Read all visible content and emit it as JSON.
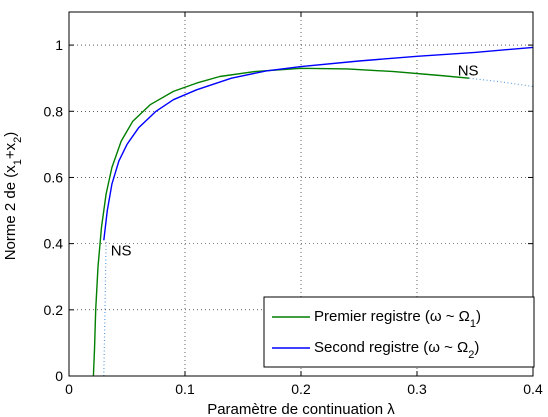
{
  "chart_data": {
    "type": "line",
    "xlabel": "Paramètre de continuation λ",
    "ylabel": "Norme 2 de (x",
    "ylabel_sub1": "1",
    "ylabel_plus": "+x",
    "ylabel_sub2": "2",
    "ylabel_close": ")",
    "xlim": [
      0,
      0.4
    ],
    "ylim": [
      0,
      1.1
    ],
    "xticks": [
      0,
      0.1,
      0.2,
      0.3,
      0.4
    ],
    "yticks": [
      0,
      0.2,
      0.4,
      0.6,
      0.8,
      1
    ],
    "xtick_labels": [
      "0",
      "0.1",
      "0.2",
      "0.3",
      "0.4"
    ],
    "ytick_labels": [
      "0",
      "0.2",
      "0.4",
      "0.6",
      "0.8",
      "1"
    ],
    "grid": true,
    "legend_position": "bottom-right",
    "series": [
      {
        "name": "Premier registre (ω ~ Ω",
        "name_sub": "1",
        "name_close": ")",
        "color": "#007f00",
        "dash": false,
        "points": [
          [
            0.021,
            0.0
          ],
          [
            0.022,
            0.08
          ],
          [
            0.023,
            0.2
          ],
          [
            0.025,
            0.33
          ],
          [
            0.028,
            0.45
          ],
          [
            0.032,
            0.55
          ],
          [
            0.037,
            0.63
          ],
          [
            0.045,
            0.71
          ],
          [
            0.055,
            0.77
          ],
          [
            0.07,
            0.82
          ],
          [
            0.09,
            0.86
          ],
          [
            0.11,
            0.885
          ],
          [
            0.13,
            0.905
          ],
          [
            0.16,
            0.92
          ],
          [
            0.2,
            0.93
          ],
          [
            0.24,
            0.928
          ],
          [
            0.28,
            0.92
          ],
          [
            0.32,
            0.908
          ],
          [
            0.345,
            0.9
          ]
        ]
      },
      {
        "name": "Second registre (ω ~ Ω",
        "name_sub": "2",
        "name_close": ")",
        "color": "#0000ff",
        "dash": false,
        "points": [
          [
            0.03,
            0.41
          ],
          [
            0.033,
            0.5
          ],
          [
            0.037,
            0.58
          ],
          [
            0.043,
            0.65
          ],
          [
            0.05,
            0.7
          ],
          [
            0.06,
            0.75
          ],
          [
            0.075,
            0.8
          ],
          [
            0.09,
            0.835
          ],
          [
            0.11,
            0.865
          ],
          [
            0.14,
            0.9
          ],
          [
            0.17,
            0.922
          ],
          [
            0.2,
            0.935
          ],
          [
            0.25,
            0.952
          ],
          [
            0.3,
            0.966
          ],
          [
            0.35,
            0.978
          ],
          [
            0.4,
            0.993
          ]
        ]
      },
      {
        "name": "",
        "color": "#5f9fdf",
        "dash": true,
        "points": [
          [
            0.03,
            0.0
          ],
          [
            0.0305,
            0.1
          ],
          [
            0.031,
            0.2
          ],
          [
            0.0315,
            0.3
          ],
          [
            0.032,
            0.41
          ]
        ]
      },
      {
        "name": "",
        "color": "#5f9fdf",
        "dash": true,
        "points": [
          [
            0.345,
            0.9
          ],
          [
            0.37,
            0.89
          ],
          [
            0.4,
            0.875
          ]
        ]
      }
    ],
    "annotations": [
      {
        "text": "NS",
        "x": 0.0325,
        "y": 0.4
      },
      {
        "text": "NS",
        "x": 0.342,
        "y": 0.92
      }
    ]
  }
}
